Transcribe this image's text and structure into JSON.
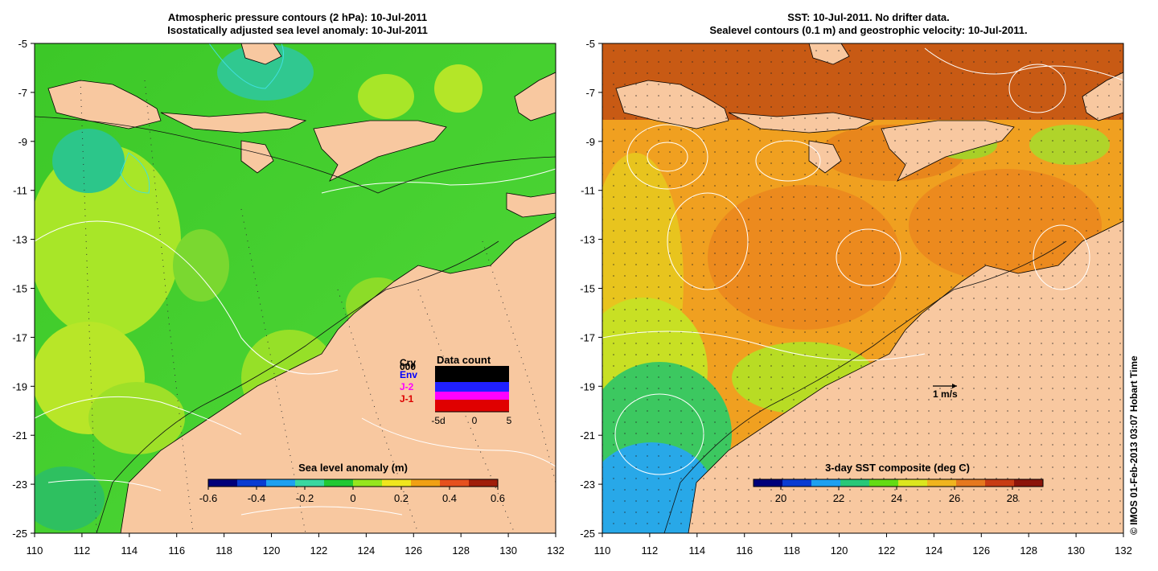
{
  "left_panel": {
    "title_line1": "Atmospheric pressure contours (2 hPa): 10-Jul-2011",
    "title_line2": "Isostatically adjusted sea level anomaly: 10-Jul-2011",
    "colorbar_label": "Sea level anomaly (m)",
    "colorbar_ticks": [
      "-0.6",
      "-0.4",
      "-0.2",
      "0",
      "0.2",
      "0.4",
      "0.6"
    ],
    "colorbar_colors": [
      "#00007a",
      "#0a3cd2",
      "#1ea0f0",
      "#3ad7a0",
      "#22c832",
      "#96e61e",
      "#f0e61e",
      "#f0a014",
      "#e6501e",
      "#a01e0a"
    ],
    "data_count": {
      "title": "Data count",
      "legend": [
        {
          "label": "Cry",
          "color": "#000000"
        },
        {
          "label": "Env",
          "color": "#0000ff"
        },
        {
          "label": "J-2",
          "color": "#ff00ff"
        },
        {
          "label": "J-1",
          "color": "#dd0000"
        }
      ],
      "extra_label": "000",
      "x_ticks": [
        "-5d",
        "0",
        "5"
      ]
    }
  },
  "right_panel": {
    "title_line1": "SST: 10-Jul-2011. No drifter data.",
    "title_line2": "Sealevel contours (0.1 m) and geostrophic velocity: 10-Jul-2011.",
    "colorbar_label": "3-day SST composite (deg C)",
    "colorbar_ticks": [
      "20",
      "22",
      "24",
      "26",
      "28"
    ],
    "colorbar_colors": [
      "#00007a",
      "#0a3cd2",
      "#1ea0f0",
      "#28c878",
      "#64dc14",
      "#dce61e",
      "#f0b41e",
      "#e6781e",
      "#c83c14",
      "#8c140a"
    ],
    "velocity_scale_label": "1 m/s"
  },
  "axes": {
    "x_ticks": [
      "110",
      "112",
      "114",
      "116",
      "118",
      "120",
      "122",
      "124",
      "126",
      "128",
      "130",
      "132"
    ],
    "y_ticks": [
      "-5",
      "-7",
      "-9",
      "-11",
      "-13",
      "-15",
      "-17",
      "-19",
      "-21",
      "-23",
      "-25"
    ]
  },
  "credit": "© IMOS 01-Feb-2013 03:07 Hobart Time",
  "colors": {
    "land": "#f8c8a0",
    "sla_ocean": "#40d030",
    "sst_ocean": "#f0a020",
    "sst_north": "#c85a14"
  }
}
